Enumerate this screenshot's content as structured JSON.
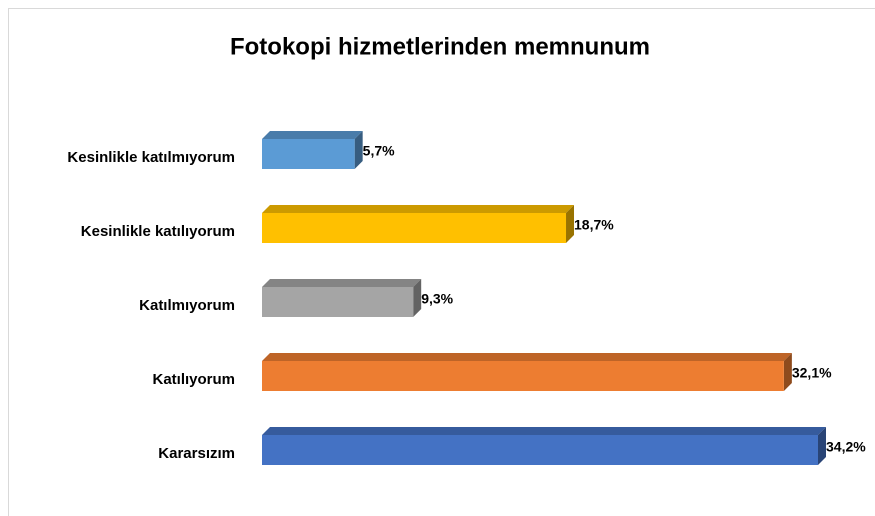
{
  "chart_data": {
    "type": "bar",
    "orientation": "horizontal",
    "title": "Fotokopi hizmetlerinden memnunum",
    "categories": [
      "Kesinlikle katılmıyorum",
      "Kesinlikle katılıyorum",
      "Katılmıyorum",
      "Katılıyorum",
      "Kararsızım"
    ],
    "values": [
      5.7,
      18.7,
      9.3,
      32.1,
      34.2
    ],
    "value_labels": [
      "5,7%",
      "18,7%",
      "9,3%",
      "32,1%",
      "34,2%"
    ],
    "colors": [
      "#5b9bd5",
      "#ffc000",
      "#a5a5a5",
      "#ed7d31",
      "#4472c4"
    ]
  }
}
